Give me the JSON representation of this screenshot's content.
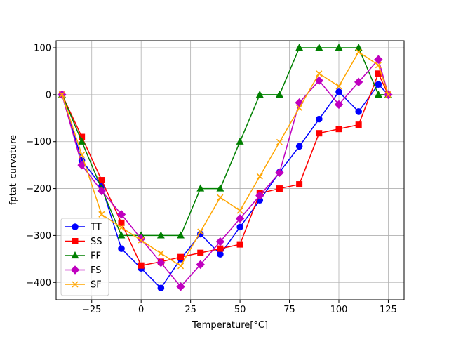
{
  "chart_data": {
    "type": "line",
    "xlabel": "Temperature[°C]",
    "ylabel": "fptat_curvature",
    "xlim": [
      -43,
      133
    ],
    "ylim": [
      -437,
      115
    ],
    "xticks": [
      -25,
      0,
      25,
      50,
      75,
      100,
      125
    ],
    "yticks": [
      -400,
      -300,
      -200,
      -100,
      0,
      100
    ],
    "xtick_labels": [
      "−25",
      "0",
      "25",
      "50",
      "75",
      "100",
      "125"
    ],
    "ytick_labels": [
      "−400",
      "−300",
      "−200",
      "−100",
      "0",
      "100"
    ],
    "grid": true,
    "legend_position": "lower-left",
    "x": [
      -40,
      -30,
      -20,
      -10,
      0,
      10,
      20,
      30,
      40,
      50,
      60,
      70,
      80,
      90,
      100,
      110,
      120,
      125
    ],
    "series": [
      {
        "name": "TT",
        "color": "#0000ff",
        "marker": "circle",
        "values": [
          0,
          -140,
          -195,
          -328,
          -370,
          -412,
          -350,
          -297,
          -340,
          -282,
          -225,
          -165,
          -110,
          -52,
          6,
          -36,
          22,
          0
        ]
      },
      {
        "name": "SS",
        "color": "#ff0000",
        "marker": "square",
        "values": [
          0,
          -90,
          -182,
          -273,
          -364,
          -356,
          -346,
          -337,
          -328,
          -319,
          -210,
          -200,
          -191,
          -82,
          -73,
          -64,
          45,
          0
        ]
      },
      {
        "name": "FF",
        "color": "#008000",
        "marker": "triangle",
        "values": [
          0,
          -100,
          -200,
          -300,
          -300,
          -300,
          -300,
          -200,
          -200,
          -100,
          0,
          0,
          100,
          100,
          100,
          100,
          0,
          0
        ]
      },
      {
        "name": "FS",
        "color": "#bf00bf",
        "marker": "diamond",
        "values": [
          0,
          -150,
          -205,
          -255,
          -307,
          -358,
          -409,
          -362,
          -313,
          -264,
          -215,
          -166,
          -17,
          30,
          -21,
          27,
          75,
          0
        ]
      },
      {
        "name": "SF",
        "color": "#ffa500",
        "marker": "x",
        "values": [
          0,
          -128,
          -255,
          -283,
          -310,
          -338,
          -365,
          -292,
          -219,
          -247,
          -174,
          -101,
          -28,
          45,
          18,
          91,
          63,
          0
        ]
      }
    ]
  }
}
